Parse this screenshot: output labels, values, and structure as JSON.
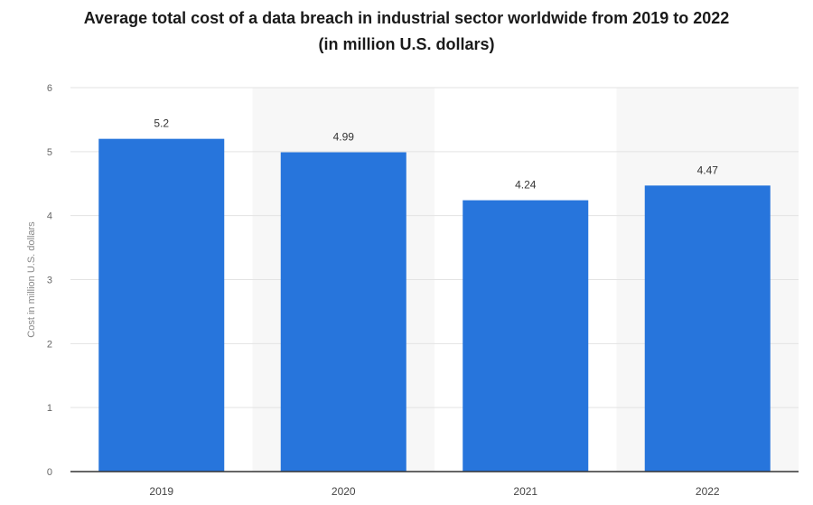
{
  "chart_data": {
    "type": "bar",
    "title_line1": "Average total cost of a data breach in industrial sector worldwide from 2019 to 2022",
    "title_line2": "(in million U.S. dollars)",
    "categories": [
      "2019",
      "2020",
      "2021",
      "2022"
    ],
    "values": [
      5.2,
      4.99,
      4.24,
      4.47
    ],
    "value_labels": [
      "5.2",
      "4.99",
      "4.24",
      "4.47"
    ],
    "xlabel": "",
    "ylabel": "Cost in million U.S. dollars",
    "ylim": [
      0,
      6
    ],
    "yticks": [
      "0",
      "1",
      "2",
      "3",
      "4",
      "5",
      "6"
    ],
    "grid": true,
    "bar_color": "#2775dc",
    "band_color": "#f7f7f7"
  }
}
